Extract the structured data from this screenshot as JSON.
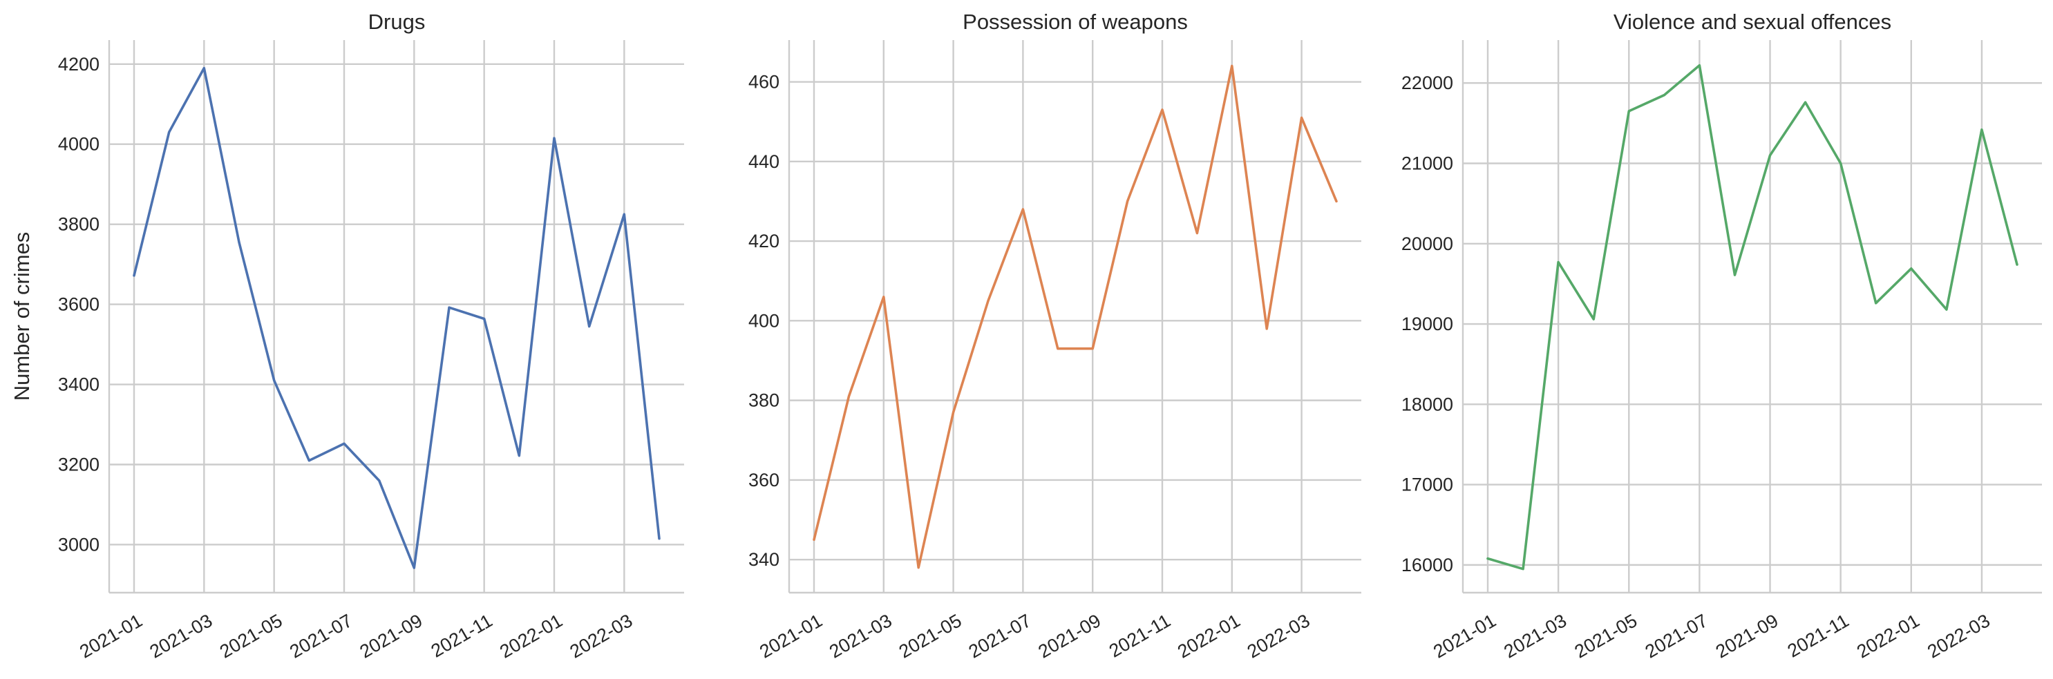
{
  "chart_data": [
    {
      "type": "line",
      "title": "Drugs",
      "xlabel": "",
      "ylabel": "Number of crimes",
      "color": "#4c72b0",
      "x": [
        "2021-01",
        "2021-02",
        "2021-03",
        "2021-04",
        "2021-05",
        "2021-06",
        "2021-07",
        "2021-08",
        "2021-09",
        "2021-10",
        "2021-11",
        "2021-12",
        "2022-01",
        "2022-02",
        "2022-03",
        "2022-04"
      ],
      "values": [
        3672,
        4030,
        4190,
        3755,
        3410,
        3210,
        3252,
        3160,
        2942,
        3592,
        3564,
        3222,
        4015,
        3545,
        3825,
        3015
      ],
      "ylim": [
        2880,
        4260
      ],
      "yticks": [
        3000,
        3200,
        3400,
        3600,
        3800,
        4000,
        4200
      ],
      "xticks": [
        "2021-01",
        "2021-03",
        "2021-05",
        "2021-07",
        "2021-09",
        "2021-11",
        "2022-01",
        "2022-03"
      ],
      "grid": true
    },
    {
      "type": "line",
      "title": "Possession of weapons",
      "xlabel": "",
      "ylabel": "",
      "color": "#dd8452",
      "x": [
        "2021-01",
        "2021-02",
        "2021-03",
        "2021-04",
        "2021-05",
        "2021-06",
        "2021-07",
        "2021-08",
        "2021-09",
        "2021-10",
        "2021-11",
        "2021-12",
        "2022-01",
        "2022-02",
        "2022-03",
        "2022-04"
      ],
      "values": [
        345,
        381,
        406,
        338,
        377,
        405,
        428,
        393,
        393,
        430,
        453,
        422,
        464,
        398,
        451,
        430
      ],
      "ylim": [
        331.7,
        470.5
      ],
      "yticks": [
        340,
        360,
        380,
        400,
        420,
        440,
        460
      ],
      "xticks": [
        "2021-01",
        "2021-03",
        "2021-05",
        "2021-07",
        "2021-09",
        "2021-11",
        "2022-01",
        "2022-03"
      ],
      "grid": true
    },
    {
      "type": "line",
      "title": "Violence and sexual offences",
      "xlabel": "",
      "ylabel": "",
      "color": "#55a868",
      "x": [
        "2021-01",
        "2021-02",
        "2021-03",
        "2021-04",
        "2021-05",
        "2021-06",
        "2021-07",
        "2021-08",
        "2021-09",
        "2021-10",
        "2021-11",
        "2021-12",
        "2022-01",
        "2022-02",
        "2022-03",
        "2022-04"
      ],
      "values": [
        16080,
        15950,
        19770,
        19060,
        21650,
        21850,
        22220,
        19610,
        21100,
        21760,
        21000,
        19260,
        19690,
        19180,
        21420,
        19740
      ],
      "ylim": [
        15655,
        22535
      ],
      "yticks": [
        16000,
        17000,
        18000,
        19000,
        20000,
        21000,
        22000
      ],
      "xticks": [
        "2021-01",
        "2021-03",
        "2021-05",
        "2021-07",
        "2021-09",
        "2021-11",
        "2022-01",
        "2022-03"
      ],
      "grid": true
    }
  ]
}
